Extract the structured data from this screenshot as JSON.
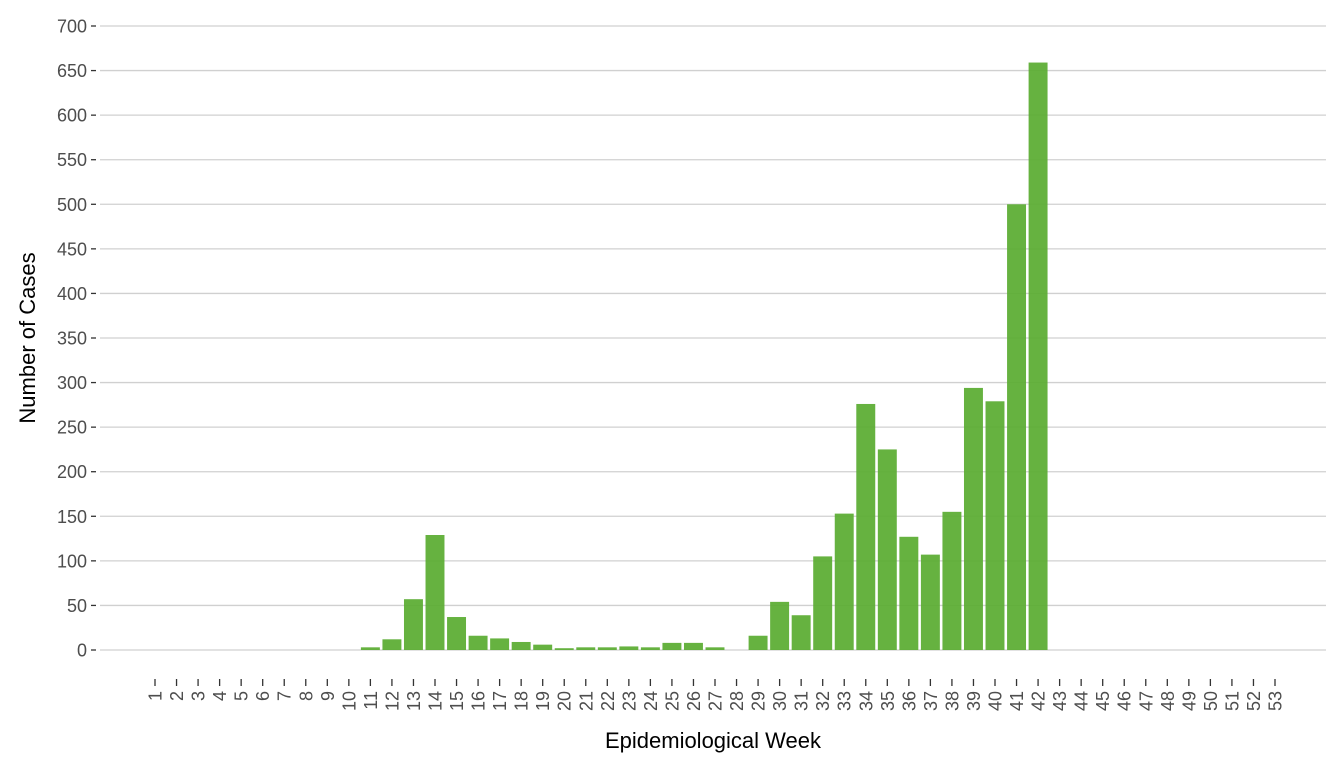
{
  "chart_data": {
    "type": "bar",
    "title": "",
    "xlabel": "Epidemiological Week",
    "ylabel": "Number of Cases",
    "ylim": [
      0,
      700
    ],
    "yticks": [
      0,
      50,
      100,
      150,
      200,
      250,
      300,
      350,
      400,
      450,
      500,
      550,
      600,
      650,
      700
    ],
    "grid": "horizontal",
    "bar_color": "#5aac32",
    "categories": [
      "1",
      "2",
      "3",
      "4",
      "5",
      "6",
      "7",
      "8",
      "9",
      "10",
      "11",
      "12",
      "13",
      "14",
      "15",
      "16",
      "17",
      "18",
      "19",
      "20",
      "21",
      "22",
      "23",
      "24",
      "25",
      "26",
      "27",
      "28",
      "29",
      "30",
      "31",
      "32",
      "33",
      "34",
      "35",
      "36",
      "37",
      "38",
      "39",
      "40",
      "41",
      "42",
      "43",
      "44",
      "45",
      "46",
      "47",
      "48",
      "49",
      "50",
      "51",
      "52",
      "53"
    ],
    "values": [
      0,
      0,
      0,
      0,
      0,
      0,
      0,
      0,
      0,
      0,
      3,
      12,
      57,
      129,
      37,
      16,
      13,
      9,
      6,
      2,
      3,
      3,
      4,
      3,
      8,
      8,
      3,
      0,
      16,
      54,
      39,
      105,
      153,
      276,
      225,
      127,
      107,
      155,
      294,
      279,
      500,
      659,
      0,
      0,
      0,
      0,
      0,
      0,
      0,
      0,
      0,
      0,
      0
    ]
  }
}
